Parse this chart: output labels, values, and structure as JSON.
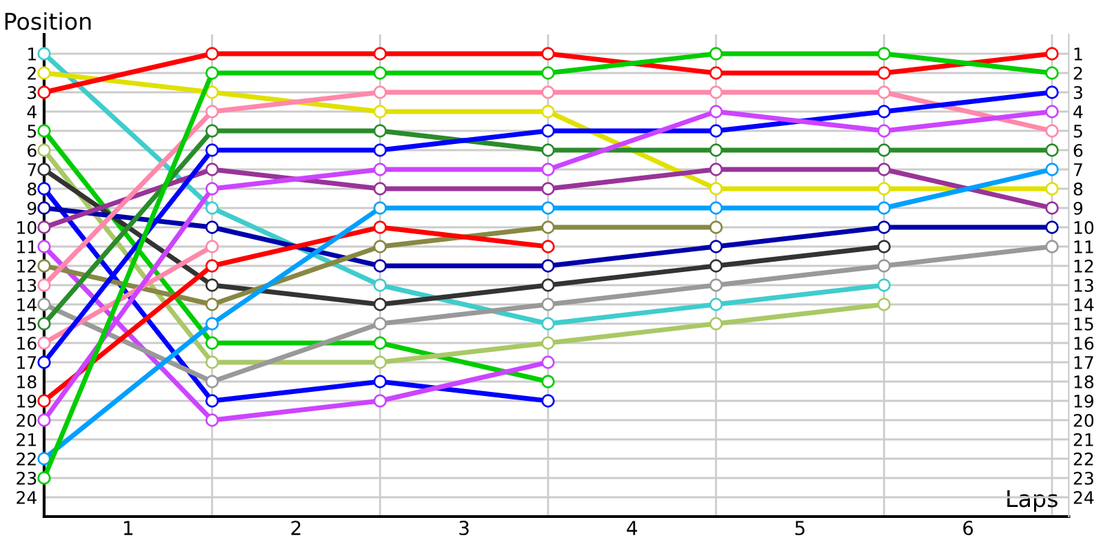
{
  "chart_data": {
    "type": "line",
    "xlabel": "Laps",
    "ylabel": "Position",
    "x": [
      0,
      1,
      2,
      3,
      4,
      5,
      6
    ],
    "xlim": [
      0,
      6.1
    ],
    "xticks": [
      {
        "value": 0.5,
        "label": "1"
      },
      {
        "value": 1.5,
        "label": "2"
      },
      {
        "value": 2.5,
        "label": "3"
      },
      {
        "value": 3.5,
        "label": "4"
      },
      {
        "value": 4.5,
        "label": "5"
      },
      {
        "value": 5.5,
        "label": "6"
      },
      {
        "value": 1,
        "label": null
      },
      {
        "value": 2,
        "label": null
      },
      {
        "value": 3,
        "label": null
      },
      {
        "value": 4,
        "label": null
      },
      {
        "value": 5,
        "label": null
      },
      {
        "value": 6,
        "label": null
      }
    ],
    "ylim": [
      25,
      0
    ],
    "yticks": [
      1,
      2,
      3,
      4,
      5,
      6,
      7,
      8,
      9,
      10,
      11,
      12,
      13,
      14,
      15,
      16,
      17,
      18,
      19,
      20,
      21,
      22,
      23,
      24
    ],
    "y2lim": [
      25,
      0
    ],
    "y2ticks": [
      1,
      2,
      3,
      4,
      5,
      6,
      7,
      8,
      9,
      10,
      11,
      12,
      13,
      14,
      15,
      16,
      17,
      18,
      19,
      20,
      21,
      22,
      23,
      24
    ],
    "grid": true,
    "marker": "circle",
    "line_style": "solid",
    "series": [
      {
        "color": "#40cccc",
        "values": [
          1,
          9,
          13,
          15,
          14,
          13,
          null
        ]
      },
      {
        "color": "#e0e000",
        "values": [
          2,
          3,
          4,
          4,
          8,
          8,
          8
        ]
      },
      {
        "color": "#ff0000",
        "values": [
          3,
          1,
          1,
          1,
          2,
          2,
          1
        ]
      },
      {
        "color": "#00cc00",
        "values": [
          5,
          16,
          16,
          18,
          null,
          null,
          null
        ]
      },
      {
        "color": "#aac866",
        "values": [
          6,
          17,
          17,
          16,
          15,
          14,
          null
        ]
      },
      {
        "color": "#333333",
        "values": [
          7,
          13,
          14,
          13,
          12,
          11,
          null
        ]
      },
      {
        "color": "#0000ff",
        "values": [
          8,
          19,
          18,
          19,
          null,
          null,
          null
        ]
      },
      {
        "color": "#0000aa",
        "values": [
          9,
          10,
          12,
          12,
          11,
          10,
          10
        ]
      },
      {
        "color": "#993399",
        "values": [
          10,
          7,
          8,
          8,
          7,
          7,
          9
        ]
      },
      {
        "color": "#cc44ff",
        "values": [
          11,
          20,
          19,
          17,
          null,
          null,
          null
        ]
      },
      {
        "color": "#888844",
        "values": [
          12,
          14,
          11,
          10,
          10,
          null,
          null
        ]
      },
      {
        "color": "#ff88aa",
        "values": [
          13,
          4,
          3,
          3,
          3,
          3,
          5
        ]
      },
      {
        "color": "#999999",
        "values": [
          14,
          18,
          15,
          14,
          13,
          12,
          11
        ]
      },
      {
        "color": "#2a8c2a",
        "values": [
          15,
          5,
          5,
          6,
          6,
          6,
          6
        ]
      },
      {
        "color": "#ff88aa",
        "values": [
          16,
          11,
          null,
          null,
          null,
          null,
          null
        ]
      },
      {
        "color": "#0000ff",
        "values": [
          17,
          6,
          6,
          5,
          5,
          4,
          3
        ]
      },
      {
        "color": "#ff0000",
        "values": [
          19,
          12,
          10,
          11,
          null,
          null,
          null
        ]
      },
      {
        "color": "#cc44ff",
        "values": [
          20,
          8,
          7,
          7,
          4,
          5,
          4
        ]
      },
      {
        "color": "#00a0ff",
        "values": [
          22,
          15,
          9,
          9,
          9,
          9,
          7
        ]
      },
      {
        "color": "#00cc00",
        "values": [
          23,
          2,
          2,
          2,
          1,
          1,
          2
        ]
      }
    ]
  }
}
